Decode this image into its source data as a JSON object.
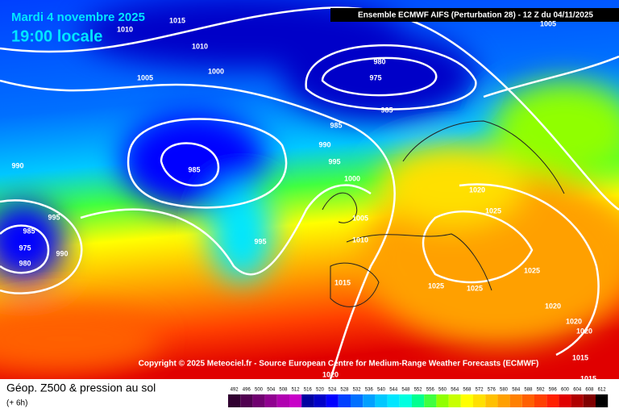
{
  "header": {
    "date": "Mardi 4 novembre 2025",
    "time": "19:00 locale",
    "model": "Ensemble ECMWF AIFS  (Perturbation 28)  - 12 Z du 04/11/2025",
    "copyright": "Copyright © 2025 Meteociel.fr - Source European Centre for Medium-Range Weather Forecasts (ECMWF)"
  },
  "legend": {
    "title": "Géop. Z500 & pression au sol",
    "step": "(+ 6h)",
    "levels": [
      492,
      496,
      500,
      504,
      508,
      512,
      516,
      520,
      524,
      528,
      532,
      536,
      540,
      544,
      548,
      552,
      556,
      560,
      564,
      568,
      572,
      576,
      580,
      584,
      588,
      592,
      596,
      600,
      604,
      608,
      612
    ],
    "colors": [
      "#300030",
      "#500050",
      "#700070",
      "#900090",
      "#b000b0",
      "#c800c8",
      "#0000a0",
      "#0000c8",
      "#0000ff",
      "#0040ff",
      "#0070ff",
      "#00a0ff",
      "#00c8ff",
      "#00e6ff",
      "#00ffe0",
      "#00ff90",
      "#40ff40",
      "#90ff00",
      "#c8ff00",
      "#ffff00",
      "#ffe000",
      "#ffc000",
      "#ffa000",
      "#ff8000",
      "#ff6000",
      "#ff4000",
      "#ff2000",
      "#e00000",
      "#b00000",
      "#800000",
      "#000000"
    ]
  },
  "isobar_labels": [
    "1015",
    "1010",
    "1010",
    "1005",
    "1000",
    "980",
    "975",
    "985",
    "985",
    "990",
    "995",
    "1000",
    "985",
    "990",
    "995",
    "985",
    "975",
    "980",
    "990",
    "995",
    "1005",
    "1010",
    "1015",
    "1020",
    "1025",
    "1025",
    "1025",
    "1025",
    "1020",
    "1020",
    "1020",
    "1015",
    "1015",
    "1020",
    "1005"
  ]
}
